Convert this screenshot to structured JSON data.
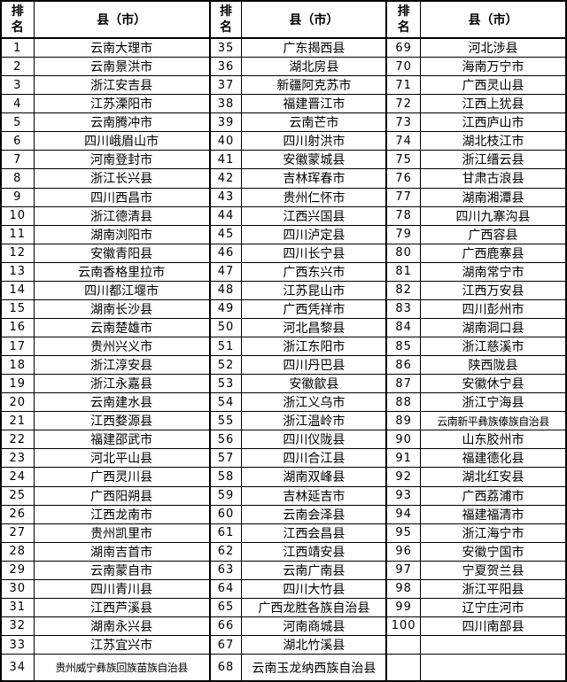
{
  "colors": {
    "border": "#000000",
    "text": "#000000",
    "background": "#ffffff"
  },
  "header": {
    "rank_label": "排名",
    "county_label": "县（市）"
  },
  "rankings": [
    {
      "rank": "1",
      "name": "云南大理市"
    },
    {
      "rank": "2",
      "name": "云南景洪市"
    },
    {
      "rank": "3",
      "name": "浙江安吉县"
    },
    {
      "rank": "4",
      "name": "江苏溧阳市"
    },
    {
      "rank": "5",
      "name": "云南腾冲市"
    },
    {
      "rank": "6",
      "name": "四川峨眉山市"
    },
    {
      "rank": "7",
      "name": "河南登封市"
    },
    {
      "rank": "8",
      "name": "浙江长兴县"
    },
    {
      "rank": "9",
      "name": "四川西昌市"
    },
    {
      "rank": "10",
      "name": "浙江德清县"
    },
    {
      "rank": "11",
      "name": "湖南浏阳市"
    },
    {
      "rank": "12",
      "name": "安徽青阳县"
    },
    {
      "rank": "13",
      "name": "云南香格里拉市"
    },
    {
      "rank": "14",
      "name": "四川都江堰市"
    },
    {
      "rank": "15",
      "name": "湖南长沙县"
    },
    {
      "rank": "16",
      "name": "云南楚雄市"
    },
    {
      "rank": "17",
      "name": "贵州兴义市"
    },
    {
      "rank": "18",
      "name": "浙江淳安县"
    },
    {
      "rank": "19",
      "name": "浙江永嘉县"
    },
    {
      "rank": "20",
      "name": "云南建水县"
    },
    {
      "rank": "21",
      "name": "江西婺源县"
    },
    {
      "rank": "22",
      "name": "福建邵武市"
    },
    {
      "rank": "23",
      "name": "河北平山县"
    },
    {
      "rank": "24",
      "name": "广西灵川县"
    },
    {
      "rank": "25",
      "name": "广西阳朔县"
    },
    {
      "rank": "26",
      "name": "江西龙南市"
    },
    {
      "rank": "27",
      "name": "贵州凯里市"
    },
    {
      "rank": "28",
      "name": "湖南吉首市"
    },
    {
      "rank": "29",
      "name": "云南蒙自市"
    },
    {
      "rank": "30",
      "name": "四川青川县"
    },
    {
      "rank": "31",
      "name": "江西芦溪县"
    },
    {
      "rank": "32",
      "name": "湖南永兴县"
    },
    {
      "rank": "33",
      "name": "江苏宜兴市"
    },
    {
      "rank": "34",
      "name": "贵州威宁彝族回族苗族自治县"
    },
    {
      "rank": "35",
      "name": "广东揭西县"
    },
    {
      "rank": "36",
      "name": "湖北房县"
    },
    {
      "rank": "37",
      "name": "新疆阿克苏市"
    },
    {
      "rank": "38",
      "name": "福建晋江市"
    },
    {
      "rank": "39",
      "name": "云南芒市"
    },
    {
      "rank": "40",
      "name": "四川射洪市"
    },
    {
      "rank": "41",
      "name": "安徽蒙城县"
    },
    {
      "rank": "42",
      "name": "吉林珲春市"
    },
    {
      "rank": "43",
      "name": "贵州仁怀市"
    },
    {
      "rank": "44",
      "name": "江西兴国县"
    },
    {
      "rank": "45",
      "name": "四川泸定县"
    },
    {
      "rank": "46",
      "name": "四川长宁县"
    },
    {
      "rank": "47",
      "name": "广西东兴市"
    },
    {
      "rank": "48",
      "name": "江苏昆山市"
    },
    {
      "rank": "49",
      "name": "广西凭祥市"
    },
    {
      "rank": "50",
      "name": "河北昌黎县"
    },
    {
      "rank": "51",
      "name": "浙江东阳市"
    },
    {
      "rank": "52",
      "name": "四川丹巴县"
    },
    {
      "rank": "53",
      "name": "安徽歙县"
    },
    {
      "rank": "54",
      "name": "浙江义乌市"
    },
    {
      "rank": "55",
      "name": "浙江温岭市"
    },
    {
      "rank": "56",
      "name": "四川仪陇县"
    },
    {
      "rank": "57",
      "name": "四川合江县"
    },
    {
      "rank": "58",
      "name": "湖南双峰县"
    },
    {
      "rank": "59",
      "name": "吉林延吉市"
    },
    {
      "rank": "60",
      "name": "云南会泽县"
    },
    {
      "rank": "61",
      "name": "江西会昌县"
    },
    {
      "rank": "62",
      "name": "江西靖安县"
    },
    {
      "rank": "63",
      "name": "云南广南县"
    },
    {
      "rank": "64",
      "name": "四川大竹县"
    },
    {
      "rank": "65",
      "name": "广西龙胜各族自治县"
    },
    {
      "rank": "66",
      "name": "河南商城县"
    },
    {
      "rank": "67",
      "name": "湖北竹溪县"
    },
    {
      "rank": "68",
      "name": "云南玉龙纳西族自治县"
    },
    {
      "rank": "69",
      "name": "河北涉县"
    },
    {
      "rank": "70",
      "name": "海南万宁市"
    },
    {
      "rank": "71",
      "name": "广西灵山县"
    },
    {
      "rank": "72",
      "name": "江西上犹县"
    },
    {
      "rank": "73",
      "name": "江西庐山市"
    },
    {
      "rank": "74",
      "name": "湖北枝江市"
    },
    {
      "rank": "75",
      "name": "浙江缙云县"
    },
    {
      "rank": "76",
      "name": "甘肃古浪县"
    },
    {
      "rank": "77",
      "name": "湖南湘潭县"
    },
    {
      "rank": "78",
      "name": "四川九寨沟县"
    },
    {
      "rank": "79",
      "name": "广西容县"
    },
    {
      "rank": "80",
      "name": "广西鹿寨县"
    },
    {
      "rank": "81",
      "name": "湖南常宁市"
    },
    {
      "rank": "82",
      "name": "江西万安县"
    },
    {
      "rank": "83",
      "name": "四川彭州市"
    },
    {
      "rank": "84",
      "name": "湖南洞口县"
    },
    {
      "rank": "85",
      "name": "浙江慈溪市"
    },
    {
      "rank": "86",
      "name": "陕西陇县"
    },
    {
      "rank": "87",
      "name": "安徽休宁县"
    },
    {
      "rank": "88",
      "name": "浙江宁海县"
    },
    {
      "rank": "89",
      "name": "云南新平彝族傣族自治县"
    },
    {
      "rank": "90",
      "name": "山东胶州市"
    },
    {
      "rank": "91",
      "name": "福建德化县"
    },
    {
      "rank": "92",
      "name": "湖北红安县"
    },
    {
      "rank": "93",
      "name": "广西荔浦市"
    },
    {
      "rank": "94",
      "name": "福建福清市"
    },
    {
      "rank": "95",
      "name": "浙江海宁市"
    },
    {
      "rank": "96",
      "name": "安徽宁国市"
    },
    {
      "rank": "97",
      "name": "宁夏贺兰县"
    },
    {
      "rank": "98",
      "name": "浙江平阳县"
    },
    {
      "rank": "99",
      "name": "辽宁庄河市"
    },
    {
      "rank": "100",
      "name": "四川南部县"
    }
  ]
}
